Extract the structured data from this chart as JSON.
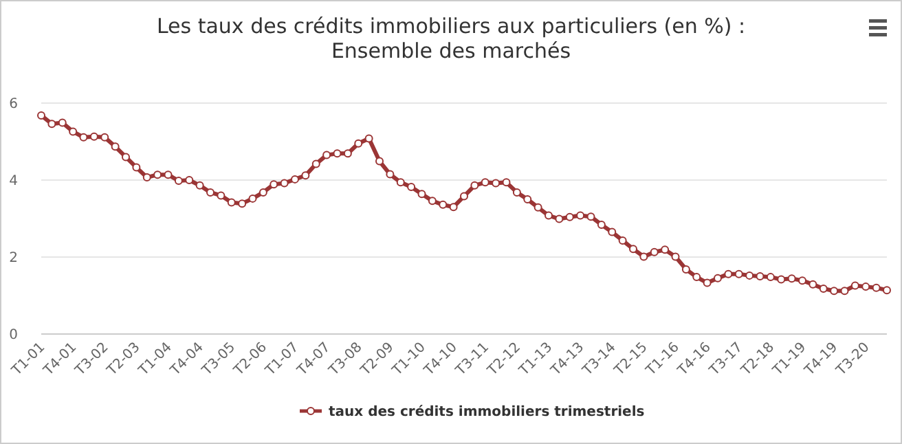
{
  "chart_data": {
    "type": "line",
    "title": "Les taux des crédits immobiliers aux particuliers (en %) :\nEnsemble des marchés",
    "categories": [
      "T1-01",
      null,
      null,
      "T4-01",
      null,
      null,
      "T3-02",
      null,
      null,
      "T2-03",
      null,
      null,
      "T1-04",
      null,
      null,
      "T4-04",
      null,
      null,
      "T3-05",
      null,
      null,
      "T2-06",
      null,
      null,
      "T1-07",
      null,
      null,
      "T4-07",
      null,
      null,
      "T3-08",
      null,
      null,
      "T2-09",
      null,
      null,
      "T1-10",
      null,
      null,
      "T4-10",
      null,
      null,
      "T3-11",
      null,
      null,
      "T2-12",
      null,
      null,
      "T1-13",
      null,
      null,
      "T4-13",
      null,
      null,
      "T3-14",
      null,
      null,
      "T2-15",
      null,
      null,
      "T1-16",
      null,
      null,
      "T4-16",
      null,
      null,
      "T3-17",
      null,
      null,
      "T2-18",
      null,
      null,
      "T1-19",
      null,
      null,
      "T4-19",
      null,
      null,
      "T3-20",
      null,
      null
    ],
    "series": [
      {
        "name": "taux des crédits immobiliers trimestriels",
        "color": "#9b3535",
        "values": [
          5.68,
          5.46,
          5.49,
          5.26,
          5.11,
          5.13,
          5.11,
          4.87,
          4.6,
          4.33,
          4.07,
          4.14,
          4.14,
          3.98,
          4.0,
          3.86,
          3.68,
          3.6,
          3.42,
          3.39,
          3.52,
          3.68,
          3.89,
          3.92,
          4.02,
          4.12,
          4.42,
          4.65,
          4.69,
          4.69,
          4.95,
          5.08,
          4.49,
          4.15,
          3.94,
          3.82,
          3.64,
          3.46,
          3.36,
          3.3,
          3.58,
          3.86,
          3.94,
          3.92,
          3.94,
          3.68,
          3.5,
          3.29,
          3.08,
          2.99,
          3.04,
          3.08,
          3.05,
          2.84,
          2.65,
          2.43,
          2.21,
          2.01,
          2.13,
          2.19,
          2.01,
          1.68,
          1.48,
          1.33,
          1.45,
          1.56,
          1.56,
          1.52,
          1.5,
          1.48,
          1.42,
          1.44,
          1.39,
          1.29,
          1.18,
          1.12,
          1.12,
          1.26,
          1.23,
          1.2,
          1.14
        ]
      }
    ],
    "ylim": [
      0,
      6
    ],
    "yticks": [
      0,
      2,
      4,
      6
    ],
    "grid": "y",
    "legend": "bottom",
    "marker": "circle",
    "line_style": "solid"
  }
}
